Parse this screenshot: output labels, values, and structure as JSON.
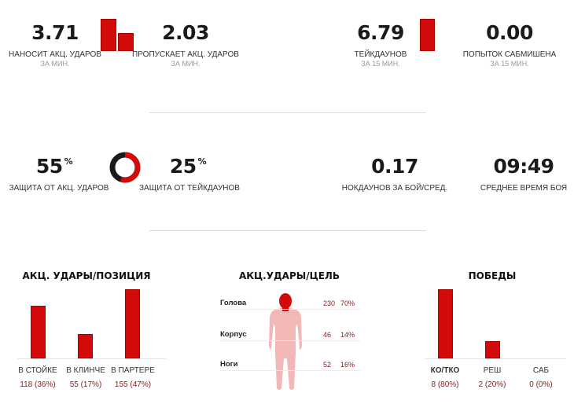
{
  "top": {
    "stat1": {
      "value": "3.71",
      "label": "НАНОСИТ АКЦ. УДАРОВ",
      "sub": "ЗА МИН."
    },
    "stat2": {
      "value": "2.03",
      "label": "ПРОПУСКАЕТ АКЦ. УДАРОВ",
      "sub": "ЗА МИН."
    },
    "stat3": {
      "value": "6.79",
      "label": "ТЕЙКДАУНОВ",
      "sub": "ЗА 15 МИН."
    },
    "stat4": {
      "value": "0.00",
      "label": "ПОПЫТОК САБМИШЕНА",
      "sub": "ЗА 15 МИН."
    }
  },
  "middle": {
    "striking_defense": {
      "value": "55",
      "unit": "%",
      "label": "ЗАЩИТА ОТ АКЦ. УДАРОВ"
    },
    "takedown_defense": {
      "value": "25",
      "unit": "%",
      "label": "ЗАЩИТА ОТ ТЕЙКДАУНОВ"
    },
    "knockdowns": {
      "value": "0.17",
      "label": "НОКДАУНОВ ЗА БОЙ/СРЕД."
    },
    "avg_time": {
      "value": "09:49",
      "label": "СРЕДНЕЕ ВРЕМЯ БОЯ"
    },
    "donut_fraction": 0.55
  },
  "position": {
    "title": "АКЦ. УДАРЫ/ПОЗИЦИЯ",
    "items": [
      {
        "label": "В СТОЙКЕ",
        "value": "118 (36%)",
        "amount": 118
      },
      {
        "label": "В КЛИНЧЕ",
        "value": "55 (17%)",
        "amount": 55
      },
      {
        "label": "В ПАРТЕРЕ",
        "value": "155 (47%)",
        "amount": 155
      }
    ]
  },
  "target": {
    "title": "АКЦ.УДАРЫ/ЦЕЛЬ",
    "items": [
      {
        "label": "Голова",
        "count": "230",
        "pct": "70%"
      },
      {
        "label": "Корпус",
        "count": "46",
        "pct": "14%"
      },
      {
        "label": "Ноги",
        "count": "52",
        "pct": "16%"
      }
    ]
  },
  "wins": {
    "title": "ПОБЕДЫ",
    "items": [
      {
        "label": "КО/ТКО",
        "value": "8 (80%)",
        "amount": 8
      },
      {
        "label": "РЕШ",
        "value": "2 (20%)",
        "amount": 2
      },
      {
        "label": "САБ",
        "value": "0 (0%)",
        "amount": 0
      }
    ]
  },
  "colors": {
    "accent": "#d20a0a",
    "body_head": "#d20a0a",
    "body_rest": "#f2b8b8"
  }
}
